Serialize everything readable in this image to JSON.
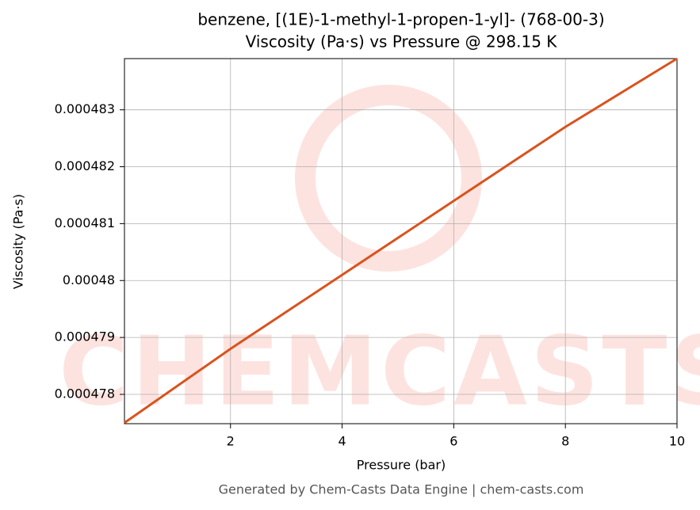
{
  "chart_data": {
    "type": "line",
    "title": "benzene, [(1E)-1-methyl-1-propen-1-yl]- (768-00-3)",
    "subtitle": "Viscosity (Pa·s) vs Pressure @ 298.15 K",
    "x_label": "Pressure (bar)",
    "y_label": "Viscosity (Pa·s)",
    "footer": "Generated by Chem-Casts Data Engine | chem-casts.com",
    "watermark": "CHEMCASTS",
    "x": [
      0.1,
      2,
      4,
      6,
      8,
      10
    ],
    "series": [
      {
        "name": "Viscosity",
        "color": "#d9531e",
        "values": [
          0.0004775,
          0.0004788,
          0.0004801,
          0.0004814,
          0.0004827,
          0.0004839
        ]
      }
    ],
    "xlim": [
      0.1,
      10
    ],
    "xticks": [
      2,
      4,
      6,
      8,
      10
    ],
    "ylim": [
      0.0004774847,
      0.0004839
    ],
    "yticks": [
      0.000478,
      0.000479,
      0.00048,
      0.000481,
      0.000482,
      0.000483
    ],
    "grid": true
  }
}
